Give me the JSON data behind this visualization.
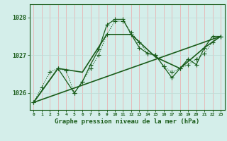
{
  "xlabel": "Graphe pression niveau de la mer (hPa)",
  "xlim": [
    -0.5,
    23.5
  ],
  "ylim": [
    1025.55,
    1028.35
  ],
  "yticks": [
    1026,
    1027,
    1028
  ],
  "xticks": [
    0,
    1,
    2,
    3,
    4,
    5,
    6,
    7,
    8,
    9,
    10,
    11,
    12,
    13,
    14,
    15,
    16,
    17,
    18,
    19,
    20,
    21,
    22,
    23
  ],
  "bg_color": "#d4eeea",
  "line_color": "#1a5c1a",
  "grid_color_v": "#c0ddd8",
  "grid_color_h": "#e8b4b4",
  "lines": [
    {
      "x": [
        0,
        1,
        2,
        3,
        4,
        5,
        6,
        7,
        8,
        9,
        10,
        11,
        12,
        13,
        14,
        15,
        16,
        17,
        18,
        19,
        20,
        21,
        22,
        23
      ],
      "y": [
        1025.75,
        1026.15,
        1026.55,
        1026.65,
        1026.6,
        1026.0,
        1026.3,
        1026.65,
        1027.0,
        1027.55,
        1027.9,
        1027.9,
        1027.6,
        1027.35,
        1027.05,
        1027.0,
        1026.7,
        1026.55,
        1026.65,
        1026.75,
        1026.9,
        1027.05,
        1027.35,
        1027.5
      ],
      "style": "dotted",
      "marker": "+"
    },
    {
      "x": [
        0,
        3,
        5,
        6,
        7,
        8,
        9,
        10,
        11,
        12,
        13,
        14,
        15,
        16,
        17,
        18,
        19,
        20,
        21,
        22,
        23
      ],
      "y": [
        1025.75,
        1026.65,
        1026.0,
        1026.3,
        1026.75,
        1027.15,
        1027.8,
        1027.95,
        1027.95,
        1027.55,
        1027.2,
        1027.05,
        1027.0,
        1026.7,
        1026.4,
        1026.65,
        1026.9,
        1026.75,
        1027.2,
        1027.5,
        1027.5
      ],
      "style": "solid",
      "marker": "+"
    },
    {
      "x": [
        0,
        3,
        6,
        9,
        12,
        15,
        18,
        21,
        23
      ],
      "y": [
        1025.75,
        1026.65,
        1026.55,
        1027.55,
        1027.55,
        1026.95,
        1026.65,
        1027.2,
        1027.5
      ],
      "style": "solid",
      "marker": null
    },
    {
      "x": [
        0,
        23
      ],
      "y": [
        1025.75,
        1027.5
      ],
      "style": "solid",
      "marker": null
    }
  ]
}
